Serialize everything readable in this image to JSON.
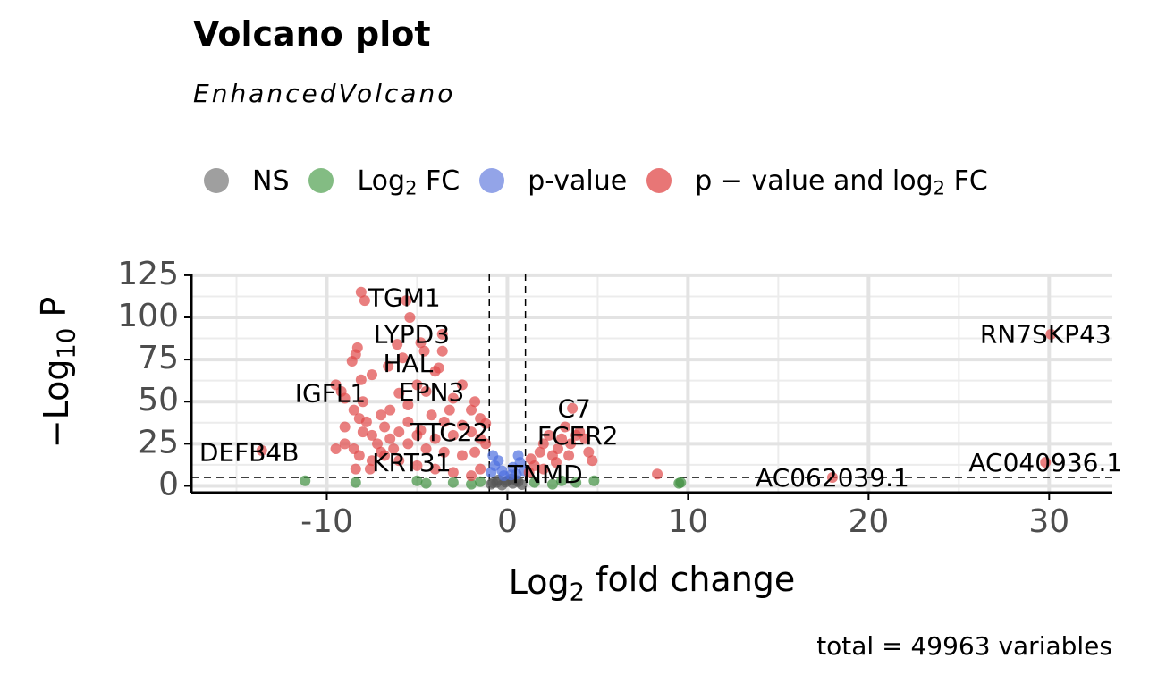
{
  "chart_data": {
    "type": "scatter",
    "title": "Volcano plot",
    "subtitle": "EnhancedVolcano",
    "xlabel": "Log₂ fold change",
    "ylabel": "−Log₁₀ P",
    "caption": "total = 49963 variables",
    "xlim": [
      -17.5,
      33.5
    ],
    "ylim": [
      -4,
      126
    ],
    "xticks": [
      -10,
      0,
      10,
      20,
      30
    ],
    "xtick_labels": [
      "-10",
      "0",
      "10",
      "20",
      "30"
    ],
    "yticks": [
      0,
      25,
      50,
      75,
      100,
      125
    ],
    "ytick_labels": [
      "0",
      "25",
      "50",
      "75",
      "100",
      "125"
    ],
    "cutoffs": {
      "log2fc": [
        -1,
        1
      ],
      "neg_log10_p": 5
    },
    "grid": true,
    "legend_position": "top",
    "legend": [
      {
        "key": "NS",
        "label": "NS",
        "color": "#7f7f7f"
      },
      {
        "key": "FC",
        "label": "Log₂ FC",
        "color": "#5aa55a"
      },
      {
        "key": "P",
        "label": "p-value",
        "color": "#6f86e0"
      },
      {
        "key": "FC_P",
        "label": "p − value and log₂ FC",
        "color": "#e04848"
      }
    ],
    "series": [
      {
        "name": "NS",
        "color": "#555555",
        "points": [
          [
            -0.9,
            1
          ],
          [
            -0.6,
            2
          ],
          [
            -0.3,
            0.5
          ],
          [
            0,
            3
          ],
          [
            0.3,
            1.5
          ],
          [
            0.6,
            2.5
          ],
          [
            0.8,
            0.8
          ],
          [
            -0.5,
            3.5
          ],
          [
            0.2,
            4
          ],
          [
            -0.1,
            2.2
          ],
          [
            0.5,
            3.2
          ],
          [
            -0.8,
            1.8
          ]
        ]
      },
      {
        "name": "Log₂ FC",
        "color": "#3f8f3f",
        "points": [
          [
            -11.2,
            3
          ],
          [
            -8.4,
            2
          ],
          [
            -4.5,
            1.5
          ],
          [
            -3,
            2
          ],
          [
            -2,
            1
          ],
          [
            -1.5,
            2.5
          ],
          [
            1.5,
            2
          ],
          [
            2.5,
            1
          ],
          [
            3,
            3
          ],
          [
            3.8,
            2
          ],
          [
            4.8,
            3
          ],
          [
            9.6,
            2
          ],
          [
            9.5,
            1.5
          ],
          [
            -5,
            3
          ]
        ]
      },
      {
        "name": "p-value",
        "color": "#4d6fe0",
        "points": [
          [
            -0.9,
            8
          ],
          [
            -0.7,
            12
          ],
          [
            -0.5,
            15
          ],
          [
            -0.3,
            9
          ],
          [
            0.3,
            11
          ],
          [
            0.5,
            7
          ],
          [
            0.7,
            14
          ],
          [
            0.9,
            9
          ],
          [
            -0.8,
            18
          ],
          [
            0.6,
            18
          ],
          [
            -0.2,
            6
          ],
          [
            0.2,
            6.5
          ]
        ]
      },
      {
        "name": "p − value and log₂ FC",
        "color": "#e04848",
        "points": [
          [
            -8.1,
            115
          ],
          [
            -7.9,
            110
          ],
          [
            -5.6,
            110
          ],
          [
            -5.4,
            100
          ],
          [
            -3.6,
            90
          ],
          [
            -3.6,
            80
          ],
          [
            -4.8,
            85
          ],
          [
            -4.6,
            80
          ],
          [
            -6.1,
            84
          ],
          [
            -8.3,
            82
          ],
          [
            -8.4,
            78
          ],
          [
            -8.6,
            74
          ],
          [
            -6.6,
            71
          ],
          [
            -5.8,
            76
          ],
          [
            -4,
            68
          ],
          [
            -3.8,
            70
          ],
          [
            -2.5,
            60
          ],
          [
            -1.8,
            50
          ],
          [
            -7.5,
            66
          ],
          [
            -8.1,
            63
          ],
          [
            -9.5,
            60
          ],
          [
            -9.2,
            56
          ],
          [
            -9,
            52
          ],
          [
            -8,
            50
          ],
          [
            -6,
            55
          ],
          [
            -5,
            60
          ],
          [
            -4.5,
            56
          ],
          [
            -3,
            52
          ],
          [
            -2,
            45
          ],
          [
            -1.5,
            40
          ],
          [
            -1.2,
            37
          ],
          [
            -8.5,
            45
          ],
          [
            -8.2,
            40
          ],
          [
            -7.8,
            38
          ],
          [
            -7,
            42
          ],
          [
            -6.5,
            45
          ],
          [
            -5.5,
            48
          ],
          [
            -4.2,
            42
          ],
          [
            -3.5,
            38
          ],
          [
            -2.5,
            36
          ],
          [
            -9,
            35
          ],
          [
            -8,
            32
          ],
          [
            -7.5,
            30
          ],
          [
            -6.8,
            35
          ],
          [
            -6,
            32
          ],
          [
            -5,
            30
          ],
          [
            -4,
            28
          ],
          [
            -3,
            30
          ],
          [
            -2,
            32
          ],
          [
            -1.5,
            28
          ],
          [
            -9,
            25
          ],
          [
            -8.5,
            22
          ],
          [
            -7.2,
            25
          ],
          [
            -6.3,
            22
          ],
          [
            -5.5,
            25
          ],
          [
            -4.5,
            22
          ],
          [
            -3.5,
            20
          ],
          [
            -2.5,
            18
          ],
          [
            -1.8,
            20
          ],
          [
            -1.2,
            25
          ],
          [
            -8.2,
            18
          ],
          [
            -7.5,
            15
          ],
          [
            -6.8,
            18
          ],
          [
            -6,
            15
          ],
          [
            -5,
            12
          ],
          [
            -4,
            10
          ],
          [
            -3,
            8
          ],
          [
            -2,
            6
          ],
          [
            -1.5,
            10
          ],
          [
            -9.5,
            22
          ],
          [
            -7,
            20
          ],
          [
            -5.5,
            38
          ],
          [
            -4.8,
            33
          ],
          [
            -3.2,
            45
          ],
          [
            -6.5,
            28
          ],
          [
            -8.4,
            10
          ],
          [
            -7.6,
            10
          ],
          [
            -13.6,
            21
          ],
          [
            1.2,
            8
          ],
          [
            1.5,
            12
          ],
          [
            1.8,
            20
          ],
          [
            2,
            25
          ],
          [
            2.3,
            30
          ],
          [
            2.5,
            18
          ],
          [
            2.8,
            22
          ],
          [
            3,
            28
          ],
          [
            3.2,
            35
          ],
          [
            3.5,
            25
          ],
          [
            3.8,
            30
          ],
          [
            4,
            32
          ],
          [
            4.3,
            28
          ],
          [
            4.5,
            20
          ],
          [
            4.7,
            15
          ],
          [
            1.3,
            16
          ],
          [
            2,
            10
          ],
          [
            2.7,
            14
          ],
          [
            3.6,
            46
          ],
          [
            3.4,
            18
          ],
          [
            8.3,
            7
          ],
          [
            18,
            5
          ],
          [
            29.8,
            14
          ],
          [
            30.1,
            90
          ]
        ]
      }
    ],
    "labels": [
      {
        "text": "TGM1",
        "x": -5.7,
        "y": 111
      },
      {
        "text": "LYPD3",
        "x": -5.3,
        "y": 89
      },
      {
        "text": "HAL",
        "x": -5.5,
        "y": 72
      },
      {
        "text": "IGFL1",
        "x": -9.8,
        "y": 54
      },
      {
        "text": "EPN3",
        "x": -4.2,
        "y": 55
      },
      {
        "text": "TTC22",
        "x": -3.2,
        "y": 31
      },
      {
        "text": "KRT31",
        "x": -5.3,
        "y": 13
      },
      {
        "text": "DEFB4B",
        "x": -14.3,
        "y": 19
      },
      {
        "text": "TNMD",
        "x": 2.1,
        "y": 6
      },
      {
        "text": "C7",
        "x": 3.7,
        "y": 45
      },
      {
        "text": "FCER2",
        "x": 3.9,
        "y": 29
      },
      {
        "text": "AC062039.1",
        "x": 18,
        "y": 4
      },
      {
        "text": "RN7SKP43",
        "x": 29.8,
        "y": 89
      },
      {
        "text": "AC040936.1",
        "x": 29.8,
        "y": 13
      }
    ]
  }
}
